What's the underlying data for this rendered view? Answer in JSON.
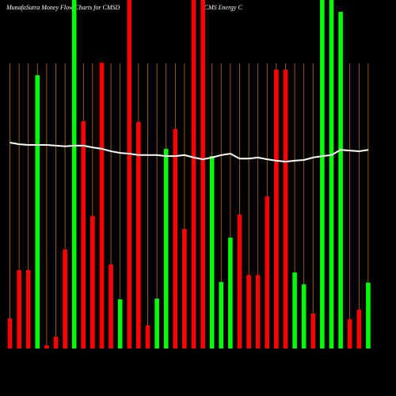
{
  "chart_data": {
    "type": "bar",
    "title": "MunafaSutra  Money Flow  Charts for CMSD",
    "subtitle": "(CMS Energy C",
    "ylim": [
      0,
      100
    ],
    "grid": true,
    "grid_color": "#b8730a",
    "values": [
      8.6,
      22.5,
      22.5,
      78.4,
      0.9,
      3.4,
      28.4,
      100,
      65.2,
      38.0,
      82.0,
      24.1,
      14.1,
      100,
      65.0,
      6.6,
      14.3,
      57.3,
      63.0,
      34.3,
      100,
      100,
      55.2,
      19.1,
      31.8,
      38.4,
      21.1,
      21.1,
      43.6,
      80.0,
      80.0,
      21.8,
      18.4,
      10.0,
      100,
      100,
      96.6,
      8.4,
      11.1,
      18.9
    ],
    "bar_colors": [
      "#ff0000",
      "#ff0000",
      "#ff0000",
      "#00ff00",
      "#ff0000",
      "#ff0000",
      "#ff0000",
      "#00ff00",
      "#ff0000",
      "#ff0000",
      "#ff0000",
      "#ff0000",
      "#00ff00",
      "#ff0000",
      "#ff0000",
      "#ff0000",
      "#00ff00",
      "#00ff00",
      "#ff0000",
      "#ff0000",
      "#ff0000",
      "#ff0000",
      "#00ff00",
      "#00ff00",
      "#00ff00",
      "#ff0000",
      "#ff0000",
      "#ff0000",
      "#ff0000",
      "#ff0000",
      "#ff0000",
      "#00ff00",
      "#00ff00",
      "#ff0000",
      "#00ff00",
      "#00ff00",
      "#00ff00",
      "#ff0000",
      "#ff0000",
      "#00ff00"
    ],
    "line": {
      "color": "#ffffff",
      "values": [
        59.1,
        58.6,
        58.4,
        58.4,
        58.4,
        58.2,
        58.0,
        58.2,
        58.2,
        57.7,
        57.3,
        56.6,
        56.1,
        55.9,
        55.5,
        55.5,
        55.5,
        55.2,
        55.2,
        55.5,
        54.8,
        54.3,
        54.8,
        55.5,
        55.9,
        54.5,
        54.5,
        54.8,
        54.3,
        53.9,
        53.6,
        53.9,
        54.1,
        54.8,
        55.2,
        55.5,
        57.0,
        56.8,
        56.6,
        57.0
      ]
    }
  }
}
